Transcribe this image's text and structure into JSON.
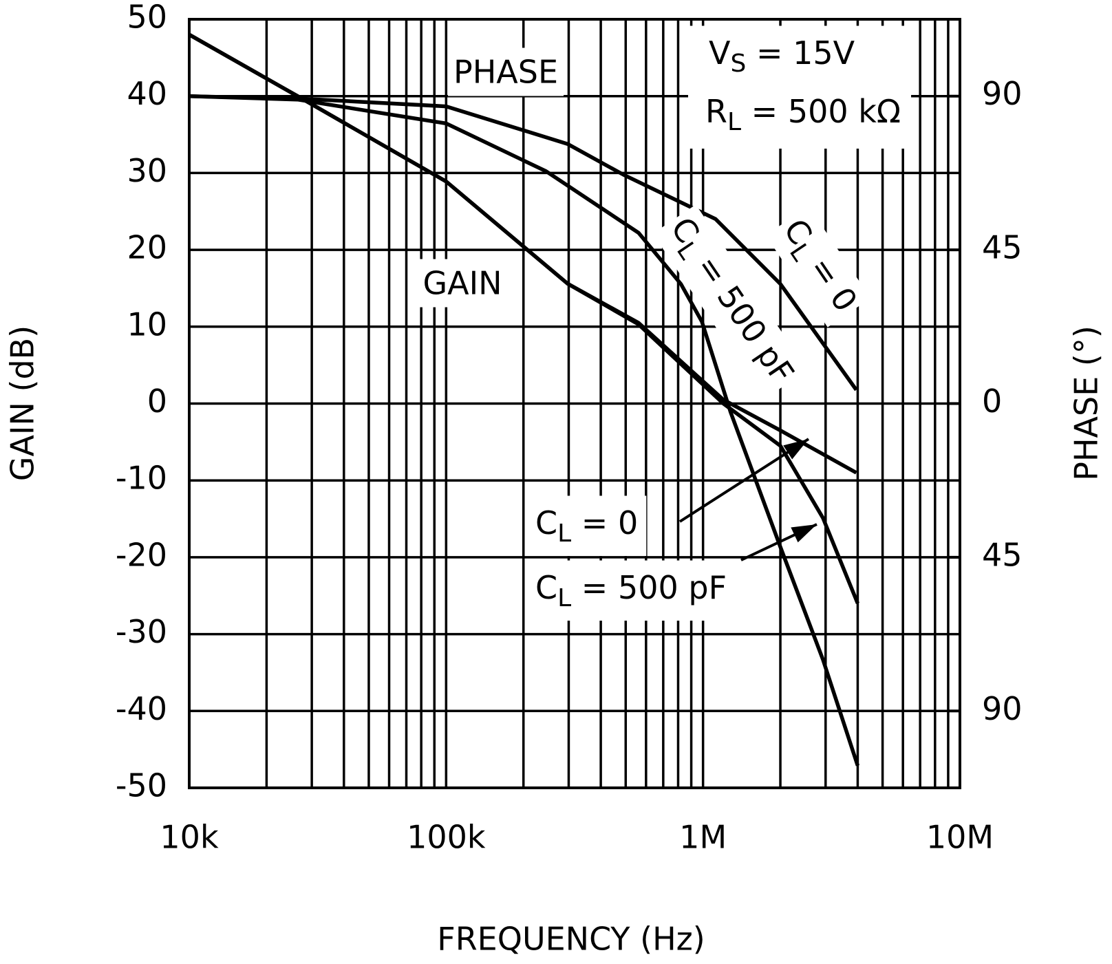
{
  "chart_data": {
    "type": "line",
    "x_label": "FREQUENCY (Hz)",
    "y_label": "GAIN (dB)",
    "y2_label": "PHASE (°)",
    "xscale": "log",
    "xlim": [
      10000,
      10000000
    ],
    "xticks": [
      {
        "value": 10000,
        "label": "10k"
      },
      {
        "value": 100000,
        "label": "100k"
      },
      {
        "value": 1000000,
        "label": "1M"
      },
      {
        "value": 10000000,
        "label": "10M"
      }
    ],
    "ylim": [
      -50,
      50
    ],
    "yticks": [
      -50,
      -40,
      -30,
      -20,
      -10,
      0,
      10,
      20,
      30,
      40,
      50
    ],
    "y2lim": [
      -112.5,
      112.5
    ],
    "y2ticks": [
      {
        "value": -90,
        "label": "90"
      },
      {
        "value": -45,
        "label": "45"
      },
      0,
      45,
      90
    ],
    "grid": true,
    "series": [
      {
        "name": "CL = 0",
        "color": "#000000",
        "x": [
          10000,
          26400,
          100000,
          297000,
          561000,
          1200000,
          2000000,
          3950000
        ],
        "values": [
          48,
          40,
          28.9,
          15.6,
          10.5,
          0.5,
          -3.5,
          -9
        ]
      },
      {
        "name": "CL = 500 pF",
        "color": "#000000",
        "x": [
          10000,
          26400,
          100000,
          297000,
          561000,
          1200000,
          2000000,
          2930000,
          4000000
        ],
        "values": [
          48,
          40,
          28.9,
          15.6,
          10.3,
          0,
          -5.5,
          -14.9,
          -26
        ]
      },
      {
        "name": "CL = 0",
        "color": "#000000",
        "axis": "y2",
        "x": [
          10000,
          32000,
          100000,
          297000,
          490000,
          1120000,
          2000000,
          3950000
        ],
        "values": [
          90,
          89,
          87,
          76,
          67,
          54,
          35,
          4
        ]
      },
      {
        "name": "CL = 500 pF",
        "color": "#000000",
        "axis": "y2",
        "x": [
          10000,
          26400,
          100000,
          245000,
          561000,
          820000,
          990000,
          1280000,
          2000000,
          2930000,
          4000000
        ],
        "values": [
          90,
          89,
          82,
          68,
          50,
          35,
          24,
          -2.5,
          -42,
          -75,
          -106
        ]
      }
    ],
    "annotations": [
      "PHASE",
      "GAIN"
    ],
    "conditions": [
      [
        "V",
        "S",
        " = 15V"
      ],
      [
        "R",
        "L",
        " = 500 kΩ"
      ]
    ]
  }
}
